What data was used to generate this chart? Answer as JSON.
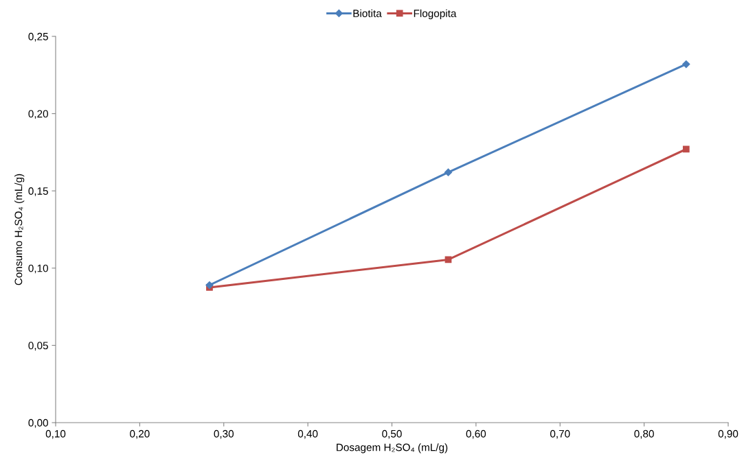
{
  "chart_data": {
    "type": "line",
    "xlabel": "Dosagem H₂SO₄ (mL/g)",
    "ylabel": "Consumo H₂SO₄ (mL/g)",
    "series": [
      {
        "name": "Biotita",
        "color": "#4a7ebb",
        "marker": "diamond",
        "x": [
          0.283,
          0.567,
          0.85
        ],
        "values": [
          0.089,
          0.162,
          0.232
        ]
      },
      {
        "name": "Flogopita",
        "color": "#be4b48",
        "marker": "square",
        "x": [
          0.283,
          0.567,
          0.85
        ],
        "values": [
          0.0875,
          0.1055,
          0.177
        ]
      }
    ],
    "xlim": [
      0.1,
      0.9
    ],
    "xticks": [
      {
        "value": 0.1,
        "label": "0,10"
      },
      {
        "value": 0.2,
        "label": "0,20"
      },
      {
        "value": 0.3,
        "label": "0,30"
      },
      {
        "value": 0.4,
        "label": "0,40"
      },
      {
        "value": 0.5,
        "label": "0,50"
      },
      {
        "value": 0.6,
        "label": "0,60"
      },
      {
        "value": 0.7,
        "label": "0,70"
      },
      {
        "value": 0.8,
        "label": "0,80"
      },
      {
        "value": 0.9,
        "label": "0,90"
      }
    ],
    "ylim": [
      0,
      0.25
    ],
    "yticks": [
      {
        "value": 0,
        "label": "0,00"
      },
      {
        "value": 0.05,
        "label": "0,05"
      },
      {
        "value": 0.1,
        "label": "0,10"
      },
      {
        "value": 0.15,
        "label": "0,15"
      },
      {
        "value": 0.2,
        "label": "0,20"
      },
      {
        "value": 0.25,
        "label": "0,25"
      }
    ],
    "grid": false,
    "legend": "top",
    "line_style": "solid"
  }
}
